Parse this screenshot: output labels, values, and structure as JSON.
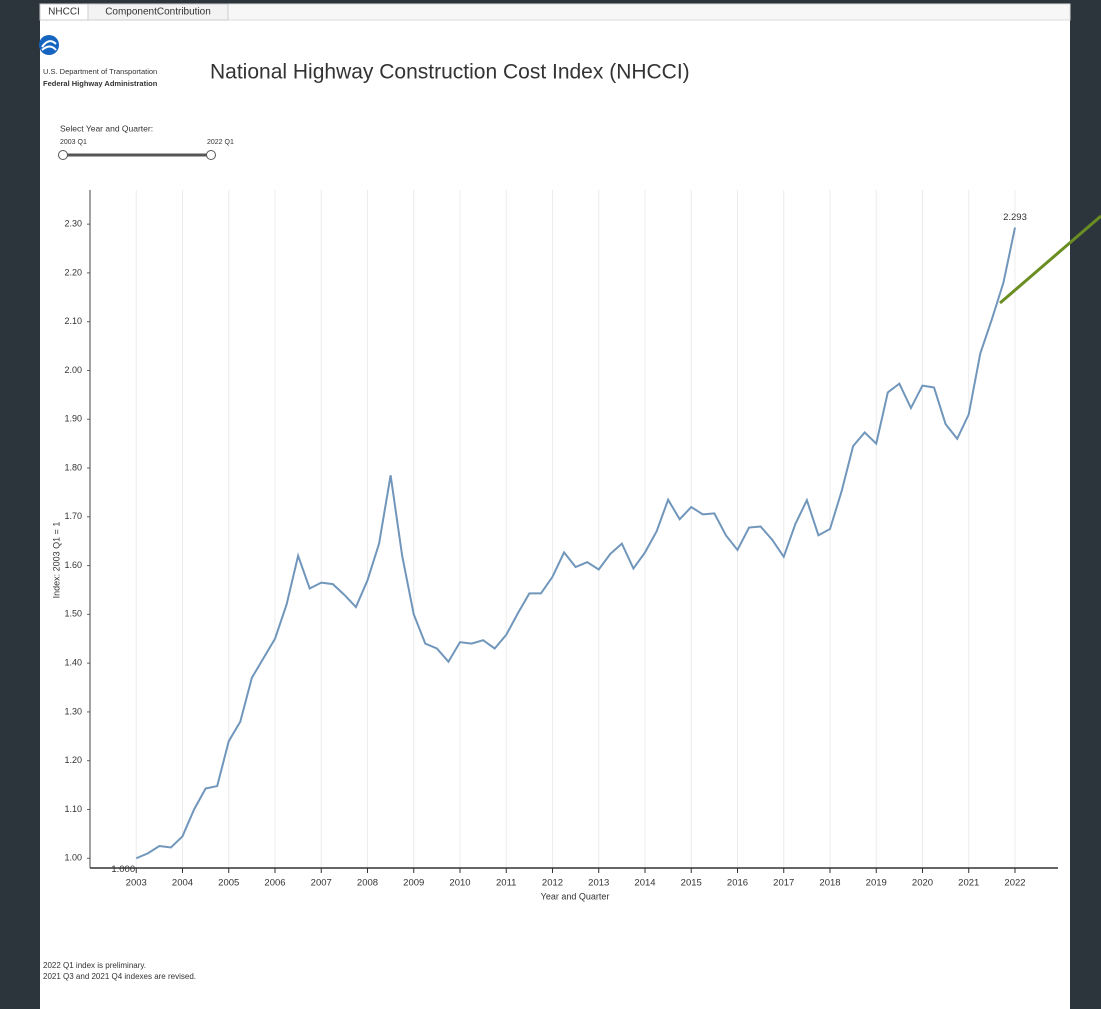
{
  "tabs": [
    "NHCCI",
    "ComponentContribution"
  ],
  "header": {
    "agency_line1": "U.S. Department of Transportation",
    "agency_line2": "Federal Highway Administration",
    "title": "National Highway Construction Cost Index (NHCCI)"
  },
  "slider": {
    "label": "Select Year and Quarter:",
    "start": "2003 Q1",
    "end": "2022 Q1"
  },
  "chart_data": {
    "type": "line",
    "xlabel": "Year and Quarter",
    "ylabel": "Index: 2003 Q1 = 1",
    "x": [
      2003,
      2003.25,
      2003.5,
      2003.75,
      2004,
      2004.25,
      2004.5,
      2004.75,
      2005,
      2005.25,
      2005.5,
      2005.75,
      2006,
      2006.25,
      2006.5,
      2006.75,
      2007,
      2007.25,
      2007.5,
      2007.75,
      2008,
      2008.25,
      2008.5,
      2008.75,
      2009,
      2009.25,
      2009.5,
      2009.75,
      2010,
      2010.25,
      2010.5,
      2010.75,
      2011,
      2011.25,
      2011.5,
      2011.75,
      2012,
      2012.25,
      2012.5,
      2012.75,
      2013,
      2013.25,
      2013.5,
      2013.75,
      2014,
      2014.25,
      2014.5,
      2014.75,
      2015,
      2015.25,
      2015.5,
      2015.75,
      2016,
      2016.25,
      2016.5,
      2016.75,
      2017,
      2017.25,
      2017.5,
      2017.75,
      2018,
      2018.25,
      2018.5,
      2018.75,
      2019,
      2019.25,
      2019.5,
      2019.75,
      2020,
      2020.25,
      2020.5,
      2020.75,
      2021,
      2021.25,
      2021.5,
      2021.75,
      2022
    ],
    "series": [
      {
        "color": "#7096bb",
        "values": [
          1.0,
          1.01,
          1.025,
          1.022,
          1.045,
          1.1,
          1.143,
          1.148,
          1.24,
          1.28,
          1.37,
          1.41,
          1.45,
          1.52,
          1.62,
          1.553,
          1.565,
          1.562,
          1.54,
          1.515,
          1.57,
          1.645,
          1.785,
          1.62,
          1.5,
          1.44,
          1.43,
          1.403,
          1.443,
          1.44,
          1.447,
          1.43,
          1.458,
          1.502,
          1.543,
          1.543,
          1.577,
          1.627,
          1.597,
          1.607,
          1.592,
          1.624,
          1.645,
          1.594,
          1.627,
          1.67,
          1.735,
          1.695,
          1.72,
          1.705,
          1.707,
          1.662,
          1.632,
          1.678,
          1.68,
          1.653,
          1.618,
          1.685,
          1.734,
          1.662,
          1.675,
          1.752,
          1.845,
          1.873,
          1.85,
          1.955,
          1.973,
          1.923,
          1.969,
          1.965,
          1.89,
          1.86,
          1.91,
          2.035,
          2.105,
          2.18,
          2.293
        ],
        "value_labels": [
          "1.000",
          null,
          null,
          null,
          null,
          null,
          null,
          null,
          null,
          null,
          null,
          null,
          null,
          null,
          null,
          null,
          null,
          null,
          null,
          null,
          null,
          null,
          null,
          null,
          null,
          null,
          null,
          null,
          null,
          null,
          null,
          null,
          null,
          null,
          null,
          null,
          null,
          null,
          null,
          null,
          null,
          null,
          null,
          null,
          null,
          null,
          null,
          null,
          null,
          null,
          null,
          null,
          null,
          null,
          null,
          null,
          null,
          null,
          null,
          null,
          null,
          null,
          null,
          null,
          null,
          null,
          null,
          null,
          null,
          null,
          null,
          null,
          null,
          null,
          null,
          null,
          "2.293"
        ]
      }
    ],
    "xlim": [
      2002,
      2022.93
    ],
    "xticks": [
      2003,
      2004,
      2005,
      2006,
      2007,
      2008,
      2009,
      2010,
      2011,
      2012,
      2013,
      2014,
      2015,
      2016,
      2017,
      2018,
      2019,
      2020,
      2021,
      2022
    ],
    "ylim": [
      0.98,
      2.37
    ],
    "yticks": [
      {
        "value": 1.0,
        "label": "1.00"
      },
      {
        "value": 1.1,
        "label": "1.10"
      },
      {
        "value": 1.2,
        "label": "1.20"
      },
      {
        "value": 1.3,
        "label": "1.30"
      },
      {
        "value": 1.4,
        "label": "1.40"
      },
      {
        "value": 1.5,
        "label": "1.50"
      },
      {
        "value": 1.6,
        "label": "1.60"
      },
      {
        "value": 1.7,
        "label": "1.70"
      },
      {
        "value": 1.8,
        "label": "1.80"
      },
      {
        "value": 1.9,
        "label": "1.90"
      },
      {
        "value": 2.0,
        "label": "2.00"
      },
      {
        "value": 2.1,
        "label": "2.10"
      },
      {
        "value": 2.2,
        "label": "2.20"
      },
      {
        "value": 2.3,
        "label": "2.30"
      }
    ],
    "grid": "x"
  },
  "footnotes": [
    "2022 Q1 index is preliminary.",
    "2021 Q3 and 2021 Q4 indexes are revised."
  ]
}
